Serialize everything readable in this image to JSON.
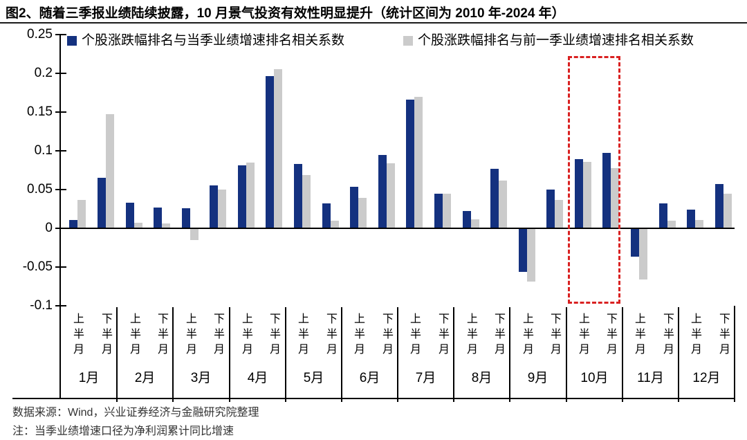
{
  "title": "图2、随着三季报业绩陆续披露，10 月景气投资有效性明显提升（统计区间为 2010 年-2024 年）",
  "footer": {
    "source": "数据来源：Wind，兴业证券经济与金融研究院整理",
    "note": "注：当季业绩增速口径为净利润累计同比增速"
  },
  "chart_data": {
    "type": "bar",
    "title": "图2、随着三季报业绩陆续披露，10 月景气投资有效性明显提升（统计区间为 2010 年-2024 年）",
    "legend_position": "top",
    "grid": false,
    "ylim": [
      -0.1,
      0.25
    ],
    "yticks": [
      "0.25",
      "0.2",
      "0.15",
      "0.1",
      "0.05",
      "0",
      "-0.05",
      "-0.1"
    ],
    "months": [
      "1月",
      "2月",
      "3月",
      "4月",
      "5月",
      "6月",
      "7月",
      "8月",
      "9月",
      "10月",
      "11月",
      "12月"
    ],
    "half_month_labels": [
      "上半月",
      "下半月"
    ],
    "series": [
      {
        "name": "个股涨跌幅排名与当季业绩增速排名相关系数",
        "color": "#14317F",
        "values": [
          0.011,
          0.065,
          0.033,
          0.027,
          0.026,
          0.055,
          0.081,
          0.196,
          0.083,
          0.032,
          0.054,
          0.095,
          0.166,
          0.045,
          0.022,
          0.077,
          -0.055,
          0.05,
          0.089,
          0.097,
          -0.036,
          0.032,
          0.024,
          0.057
        ]
      },
      {
        "name": "个股涨跌幅排名与前一季业绩增速排名相关系数",
        "color": "#CBCBCB",
        "values": [
          0.037,
          0.147,
          0.007,
          0.006,
          -0.014,
          0.05,
          0.085,
          0.205,
          0.069,
          0.01,
          0.039,
          0.084,
          0.17,
          0.045,
          0.012,
          0.062,
          -0.068,
          0.037,
          0.086,
          0.078,
          -0.065,
          0.01,
          0.011,
          0.045
        ]
      }
    ],
    "highlight": {
      "month": "10月",
      "style": "red-dashed-box",
      "color": "#D92121"
    }
  }
}
